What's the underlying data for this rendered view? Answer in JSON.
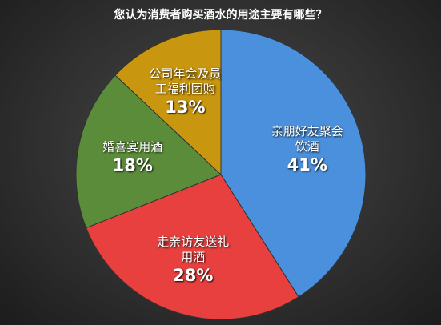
{
  "chart_data": {
    "type": "pie",
    "title": "您认为消费者购买酒水的用途主要有哪些？",
    "categories": [
      "亲朋好友聚会饮酒",
      "走亲访友送礼用酒",
      "婚喜宴用酒",
      "公司年会及员工福利团购"
    ],
    "values": [
      41,
      28,
      18,
      13
    ],
    "value_labels": [
      "41%",
      "28%",
      "18%",
      "13%"
    ],
    "colors": [
      "#4a90dc",
      "#e8403e",
      "#5b8c3a",
      "#c9970f"
    ]
  }
}
